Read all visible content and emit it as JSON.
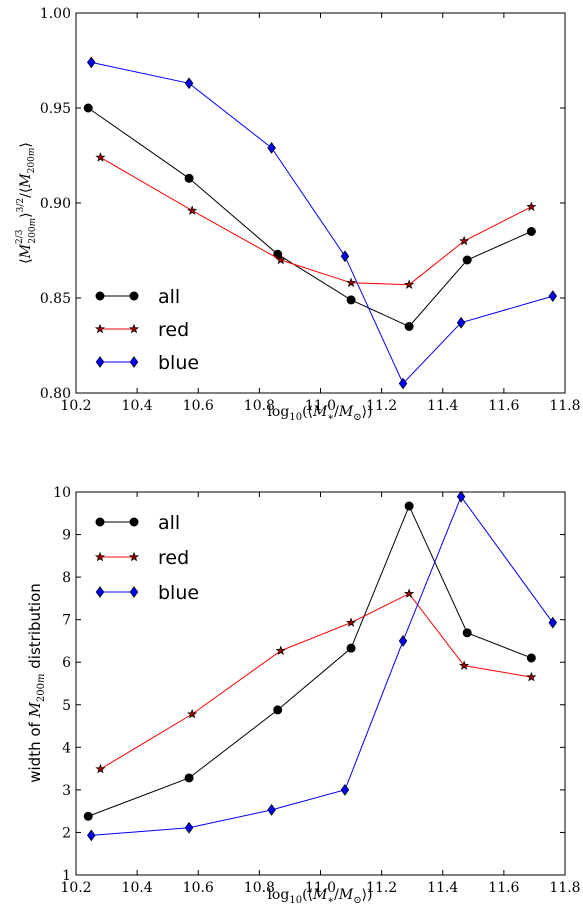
{
  "chart_data": [
    {
      "type": "line",
      "title": "",
      "xlabel": "log₁₀(⟨M*/M⊙⟩)",
      "ylabel": "⟨M200m^(2/3)⟩^(3/2) / ⟨M200m⟩",
      "xlim": [
        10.2,
        11.8
      ],
      "ylim": [
        0.8,
        1.0
      ],
      "xticks": [
        "10.2",
        "10.4",
        "10.6",
        "10.8",
        "11.0",
        "11.2",
        "11.4",
        "11.6",
        "11.8"
      ],
      "yticks": [
        "0.80",
        "0.85",
        "0.90",
        "0.95",
        "1.00"
      ],
      "grid": false,
      "legend_position": "lower-left",
      "series": [
        {
          "name": "all",
          "color": "#000000",
          "marker": "circle",
          "x": [
            10.24,
            10.57,
            10.86,
            11.1,
            11.29,
            11.48,
            11.69
          ],
          "y": [
            0.95,
            0.913,
            0.873,
            0.849,
            0.835,
            0.87,
            0.885
          ]
        },
        {
          "name": "red",
          "color": "#ff0000",
          "marker": "star",
          "x": [
            10.28,
            10.58,
            10.87,
            11.1,
            11.29,
            11.47,
            11.69
          ],
          "y": [
            0.924,
            0.896,
            0.87,
            0.858,
            0.857,
            0.88,
            0.898
          ]
        },
        {
          "name": "blue",
          "color": "#0000ff",
          "marker": "diamond",
          "x": [
            10.25,
            10.57,
            10.84,
            11.08,
            11.27,
            11.46,
            11.76
          ],
          "y": [
            0.974,
            0.963,
            0.929,
            0.872,
            0.805,
            0.837,
            0.851
          ]
        }
      ]
    },
    {
      "type": "line",
      "title": "",
      "xlabel": "log₁₀(⟨M*/M⊙⟩)",
      "ylabel": "width of M200m distribution",
      "xlim": [
        10.2,
        11.8
      ],
      "ylim": [
        1,
        10
      ],
      "xticks": [
        "10.2",
        "10.4",
        "10.6",
        "10.8",
        "11.0",
        "11.2",
        "11.4",
        "11.6",
        "11.8"
      ],
      "yticks": [
        "1",
        "2",
        "3",
        "4",
        "5",
        "6",
        "7",
        "8",
        "9",
        "10"
      ],
      "grid": false,
      "legend_position": "upper-left",
      "series": [
        {
          "name": "all",
          "color": "#000000",
          "marker": "circle",
          "x": [
            10.24,
            10.57,
            10.86,
            11.1,
            11.29,
            11.48,
            11.69
          ],
          "y": [
            2.38,
            3.28,
            4.88,
            6.33,
            9.67,
            6.69,
            6.1
          ]
        },
        {
          "name": "red",
          "color": "#ff0000",
          "marker": "star",
          "x": [
            10.28,
            10.58,
            10.87,
            11.1,
            11.29,
            11.47,
            11.69
          ],
          "y": [
            3.49,
            4.78,
            6.27,
            6.93,
            7.61,
            5.92,
            5.65
          ]
        },
        {
          "name": "blue",
          "color": "#0000ff",
          "marker": "diamond",
          "x": [
            10.25,
            10.57,
            10.84,
            11.08,
            11.27,
            11.46,
            11.76
          ],
          "y": [
            1.93,
            2.11,
            2.53,
            3.0,
            6.5,
            9.89,
            6.93
          ]
        }
      ]
    }
  ]
}
